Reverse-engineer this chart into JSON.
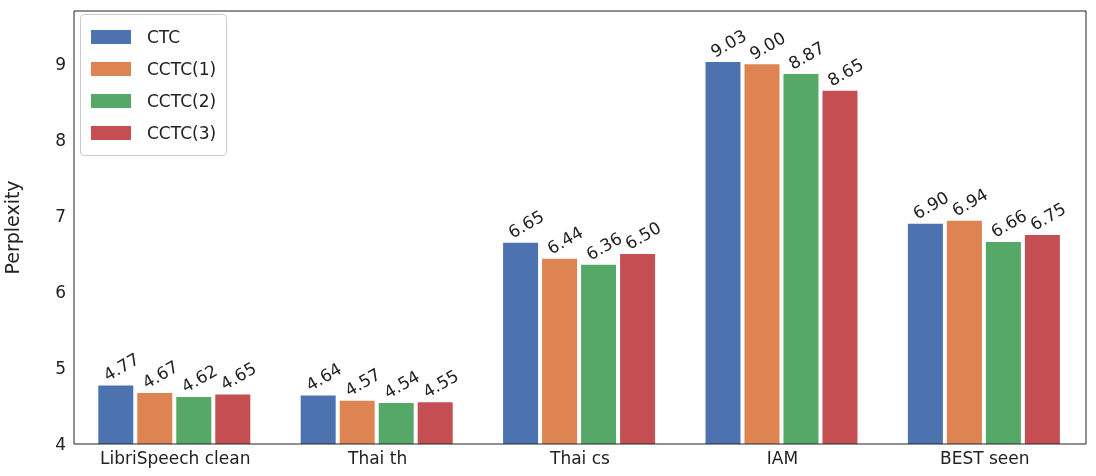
{
  "chart_data": {
    "type": "bar",
    "ylabel": "Perplexity",
    "categories": [
      "LibriSpeech clean",
      "Thai th",
      "Thai cs",
      "IAM",
      "BEST seen"
    ],
    "series": [
      {
        "name": "CTC",
        "color": "#4c72b0",
        "values": [
          4.77,
          4.64,
          6.65,
          9.03,
          6.9
        ],
        "value_labels": [
          "4.77",
          "4.64",
          "6.65",
          "9.03",
          "6.90"
        ]
      },
      {
        "name": "CCTC(1)",
        "color": "#dd8452",
        "values": [
          4.67,
          4.57,
          6.44,
          9.0,
          6.94
        ],
        "value_labels": [
          "4.67",
          "4.57",
          "6.44",
          "9.00",
          "6.94"
        ]
      },
      {
        "name": "CCTC(2)",
        "color": "#55a868",
        "values": [
          4.62,
          4.54,
          6.36,
          8.87,
          6.66
        ],
        "value_labels": [
          "4.62",
          "4.54",
          "6.36",
          "8.87",
          "6.66"
        ]
      },
      {
        "name": "CCTC(3)",
        "color": "#c44e52",
        "values": [
          4.65,
          4.55,
          6.5,
          8.65,
          6.75
        ],
        "value_labels": [
          "4.65",
          "4.55",
          "6.50",
          "8.65",
          "6.75"
        ]
      }
    ],
    "ylim": [
      4,
      9.7
    ],
    "yticks": [
      4,
      5,
      6,
      7,
      8,
      9
    ],
    "grid": false,
    "legend": "top left"
  }
}
